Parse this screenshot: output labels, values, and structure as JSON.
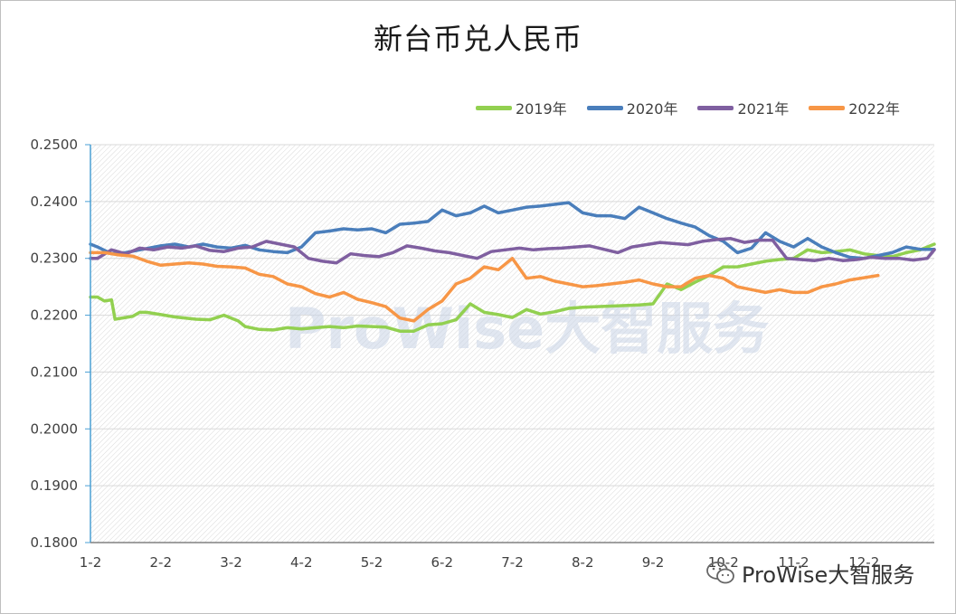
{
  "watermark": {
    "center": "ProWise大智服务",
    "bottom": "ProWise大智服务",
    "wechat_icon": "wechat-icon"
  },
  "chart_data": {
    "type": "line",
    "title": "新台币兑人民币",
    "xlabel": "",
    "ylabel": "",
    "x_tick_labels": [
      "1-2",
      "2-2",
      "3-2",
      "4-2",
      "5-2",
      "6-2",
      "7-2",
      "8-2",
      "9-2",
      "10-2",
      "11-2",
      "12-2"
    ],
    "y_tick_labels": [
      "0.1800",
      "0.1900",
      "0.2000",
      "0.2100",
      "0.2200",
      "0.2300",
      "0.2400",
      "0.2500"
    ],
    "ylim": [
      0.18,
      0.25
    ],
    "xlim": [
      0,
      12
    ],
    "grid": "horizontal",
    "legend_position": "top-right",
    "series": [
      {
        "name": "2019年",
        "color": "#92d050",
        "x": [
          0,
          0.1,
          0.2,
          0.3,
          0.35,
          0.5,
          0.6,
          0.7,
          0.8,
          1.0,
          1.2,
          1.5,
          1.7,
          1.9,
          2.0,
          2.1,
          2.2,
          2.4,
          2.6,
          2.8,
          3.0,
          3.2,
          3.4,
          3.6,
          3.8,
          4.0,
          4.2,
          4.4,
          4.6,
          4.8,
          5.0,
          5.2,
          5.4,
          5.6,
          5.8,
          6.0,
          6.2,
          6.4,
          6.6,
          6.8,
          7.0,
          7.2,
          7.4,
          7.6,
          7.8,
          8.0,
          8.2,
          8.4,
          8.6,
          8.8,
          9.0,
          9.2,
          9.4,
          9.6,
          9.8,
          10.0,
          10.2,
          10.4,
          10.6,
          10.8,
          11.0,
          11.2,
          11.4,
          11.6,
          11.8,
          12.0
        ],
        "y": [
          0.2232,
          0.2232,
          0.2225,
          0.2227,
          0.2193,
          0.2196,
          0.2198,
          0.2205,
          0.2205,
          0.2201,
          0.2197,
          0.2193,
          0.2192,
          0.22,
          0.2195,
          0.219,
          0.218,
          0.2175,
          0.2174,
          0.2178,
          0.2176,
          0.2178,
          0.218,
          0.2178,
          0.2181,
          0.218,
          0.2179,
          0.2172,
          0.2172,
          0.2183,
          0.2185,
          0.2192,
          0.222,
          0.2205,
          0.2201,
          0.2196,
          0.221,
          0.2202,
          0.2206,
          0.2212,
          0.2214,
          0.2215,
          0.2216,
          0.2217,
          0.2218,
          0.222,
          0.2255,
          0.2245,
          0.2258,
          0.227,
          0.2285,
          0.2285,
          0.229,
          0.2295,
          0.2298,
          0.23,
          0.2315,
          0.231,
          0.2312,
          0.2315,
          0.2308,
          0.2305,
          0.2303,
          0.231,
          0.2315,
          0.2325
        ]
      },
      {
        "name": "2020年",
        "color": "#4a7ebb",
        "x": [
          0,
          0.1,
          0.3,
          0.5,
          0.7,
          1.0,
          1.2,
          1.4,
          1.6,
          1.8,
          2.0,
          2.2,
          2.4,
          2.6,
          2.8,
          3.0,
          3.2,
          3.4,
          3.6,
          3.8,
          4.0,
          4.2,
          4.4,
          4.6,
          4.8,
          5.0,
          5.2,
          5.4,
          5.6,
          5.8,
          6.0,
          6.2,
          6.4,
          6.6,
          6.8,
          7.0,
          7.2,
          7.4,
          7.6,
          7.8,
          8.0,
          8.2,
          8.4,
          8.6,
          8.8,
          9.0,
          9.2,
          9.4,
          9.6,
          9.8,
          10.0,
          10.2,
          10.4,
          10.6,
          10.8,
          11.0,
          11.2,
          11.4,
          11.6,
          11.8,
          12.0
        ],
        "y": [
          0.2325,
          0.232,
          0.2308,
          0.231,
          0.2315,
          0.2322,
          0.2325,
          0.232,
          0.2325,
          0.232,
          0.2318,
          0.2323,
          0.2315,
          0.2312,
          0.231,
          0.232,
          0.2345,
          0.2348,
          0.2352,
          0.235,
          0.2352,
          0.2345,
          0.236,
          0.2362,
          0.2365,
          0.2385,
          0.2375,
          0.238,
          0.2392,
          0.238,
          0.2385,
          0.239,
          0.2392,
          0.2395,
          0.2398,
          0.238,
          0.2375,
          0.2375,
          0.237,
          0.239,
          0.238,
          0.237,
          0.2362,
          0.2355,
          0.234,
          0.233,
          0.231,
          0.2318,
          0.2345,
          0.233,
          0.232,
          0.2335,
          0.232,
          0.231,
          0.2302,
          0.23,
          0.2305,
          0.231,
          0.232,
          0.2316,
          0.2316
        ]
      },
      {
        "name": "2021年",
        "color": "#7f5fa0",
        "x": [
          0,
          0.1,
          0.3,
          0.5,
          0.7,
          0.9,
          1.1,
          1.3,
          1.5,
          1.7,
          1.9,
          2.1,
          2.3,
          2.5,
          2.7,
          2.9,
          3.1,
          3.3,
          3.5,
          3.7,
          3.9,
          4.1,
          4.3,
          4.5,
          4.7,
          4.9,
          5.1,
          5.3,
          5.5,
          5.7,
          5.9,
          6.1,
          6.3,
          6.5,
          6.7,
          6.9,
          7.1,
          7.3,
          7.5,
          7.7,
          7.9,
          8.1,
          8.3,
          8.5,
          8.7,
          8.9,
          9.1,
          9.3,
          9.5,
          9.7,
          9.9,
          10.1,
          10.3,
          10.5,
          10.7,
          10.9,
          11.1,
          11.3,
          11.5,
          11.7,
          11.9,
          12.0
        ],
        "y": [
          0.23,
          0.23,
          0.2315,
          0.2308,
          0.2318,
          0.2315,
          0.232,
          0.2318,
          0.2322,
          0.2314,
          0.2312,
          0.2318,
          0.232,
          0.233,
          0.2325,
          0.232,
          0.23,
          0.2295,
          0.2292,
          0.2308,
          0.2305,
          0.2303,
          0.231,
          0.2322,
          0.2318,
          0.2313,
          0.231,
          0.2305,
          0.23,
          0.2312,
          0.2315,
          0.2318,
          0.2315,
          0.2317,
          0.2318,
          0.232,
          0.2322,
          0.2316,
          0.231,
          0.232,
          0.2324,
          0.2328,
          0.2326,
          0.2324,
          0.233,
          0.2333,
          0.2335,
          0.2328,
          0.2332,
          0.2332,
          0.23,
          0.2298,
          0.2296,
          0.23,
          0.2296,
          0.2298,
          0.2302,
          0.23,
          0.23,
          0.2297,
          0.23,
          0.2315
        ]
      },
      {
        "name": "2022年",
        "color": "#f79646",
        "x": [
          0,
          0.2,
          0.4,
          0.6,
          0.8,
          1.0,
          1.2,
          1.4,
          1.6,
          1.8,
          2.0,
          2.2,
          2.4,
          2.6,
          2.8,
          3.0,
          3.2,
          3.4,
          3.6,
          3.8,
          4.0,
          4.2,
          4.4,
          4.6,
          4.8,
          5.0,
          5.2,
          5.4,
          5.6,
          5.8,
          6.0,
          6.2,
          6.4,
          6.6,
          6.8,
          7.0,
          7.2,
          7.4,
          7.6,
          7.8,
          8.0,
          8.2,
          8.4,
          8.6,
          8.8,
          9.0,
          9.2,
          9.4,
          9.6,
          9.8,
          10.0,
          10.2,
          10.4,
          10.6,
          10.8,
          11.0,
          11.2
        ],
        "y": [
          0.231,
          0.231,
          0.2306,
          0.2304,
          0.2295,
          0.2288,
          0.229,
          0.2292,
          0.229,
          0.2286,
          0.2285,
          0.2283,
          0.2272,
          0.2268,
          0.2255,
          0.225,
          0.2238,
          0.2232,
          0.224,
          0.2228,
          0.2222,
          0.2215,
          0.2195,
          0.219,
          0.221,
          0.2225,
          0.2255,
          0.2265,
          0.2285,
          0.228,
          0.23,
          0.2265,
          0.2268,
          0.226,
          0.2255,
          0.225,
          0.2252,
          0.2255,
          0.2258,
          0.2262,
          0.2255,
          0.225,
          0.225,
          0.2265,
          0.227,
          0.2265,
          0.225,
          0.2245,
          0.224,
          0.2245,
          0.224,
          0.224,
          0.225,
          0.2255,
          0.2262,
          0.2266,
          0.227
        ]
      }
    ]
  }
}
